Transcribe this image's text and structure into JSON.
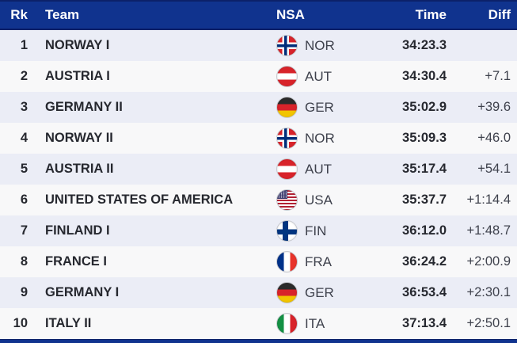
{
  "table": {
    "columns": {
      "rank": "Rk",
      "team": "Team",
      "nsa": "NSA",
      "time": "Time",
      "diff": "Diff"
    },
    "rows": [
      {
        "rank": "1",
        "team": "NORWAY I",
        "flag": "nor",
        "nsa": "NOR",
        "time": "34:23.3",
        "diff": ""
      },
      {
        "rank": "2",
        "team": "AUSTRIA I",
        "flag": "aut",
        "nsa": "AUT",
        "time": "34:30.4",
        "diff": "+7.1"
      },
      {
        "rank": "3",
        "team": "GERMANY II",
        "flag": "ger",
        "nsa": "GER",
        "time": "35:02.9",
        "diff": "+39.6"
      },
      {
        "rank": "4",
        "team": "NORWAY II",
        "flag": "nor",
        "nsa": "NOR",
        "time": "35:09.3",
        "diff": "+46.0"
      },
      {
        "rank": "5",
        "team": "AUSTRIA II",
        "flag": "aut",
        "nsa": "AUT",
        "time": "35:17.4",
        "diff": "+54.1"
      },
      {
        "rank": "6",
        "team": "UNITED STATES OF AMERICA",
        "flag": "usa",
        "nsa": "USA",
        "time": "35:37.7",
        "diff": "+1:14.4"
      },
      {
        "rank": "7",
        "team": "FINLAND I",
        "flag": "fin",
        "nsa": "FIN",
        "time": "36:12.0",
        "diff": "+1:48.7"
      },
      {
        "rank": "8",
        "team": "FRANCE I",
        "flag": "fra",
        "nsa": "FRA",
        "time": "36:24.2",
        "diff": "+2:00.9"
      },
      {
        "rank": "9",
        "team": "GERMANY I",
        "flag": "ger",
        "nsa": "GER",
        "time": "36:53.4",
        "diff": "+2:30.1"
      },
      {
        "rank": "10",
        "team": "ITALY II",
        "flag": "ita",
        "nsa": "ITA",
        "time": "37:13.4",
        "diff": "+2:50.1"
      }
    ],
    "colors": {
      "header_bg": "#10338e",
      "header_text": "#ffffff",
      "row_odd": "#ebedf6",
      "row_even": "#f8f8f9",
      "bold_text": "#26282f",
      "regular_text": "#3e414c"
    }
  }
}
